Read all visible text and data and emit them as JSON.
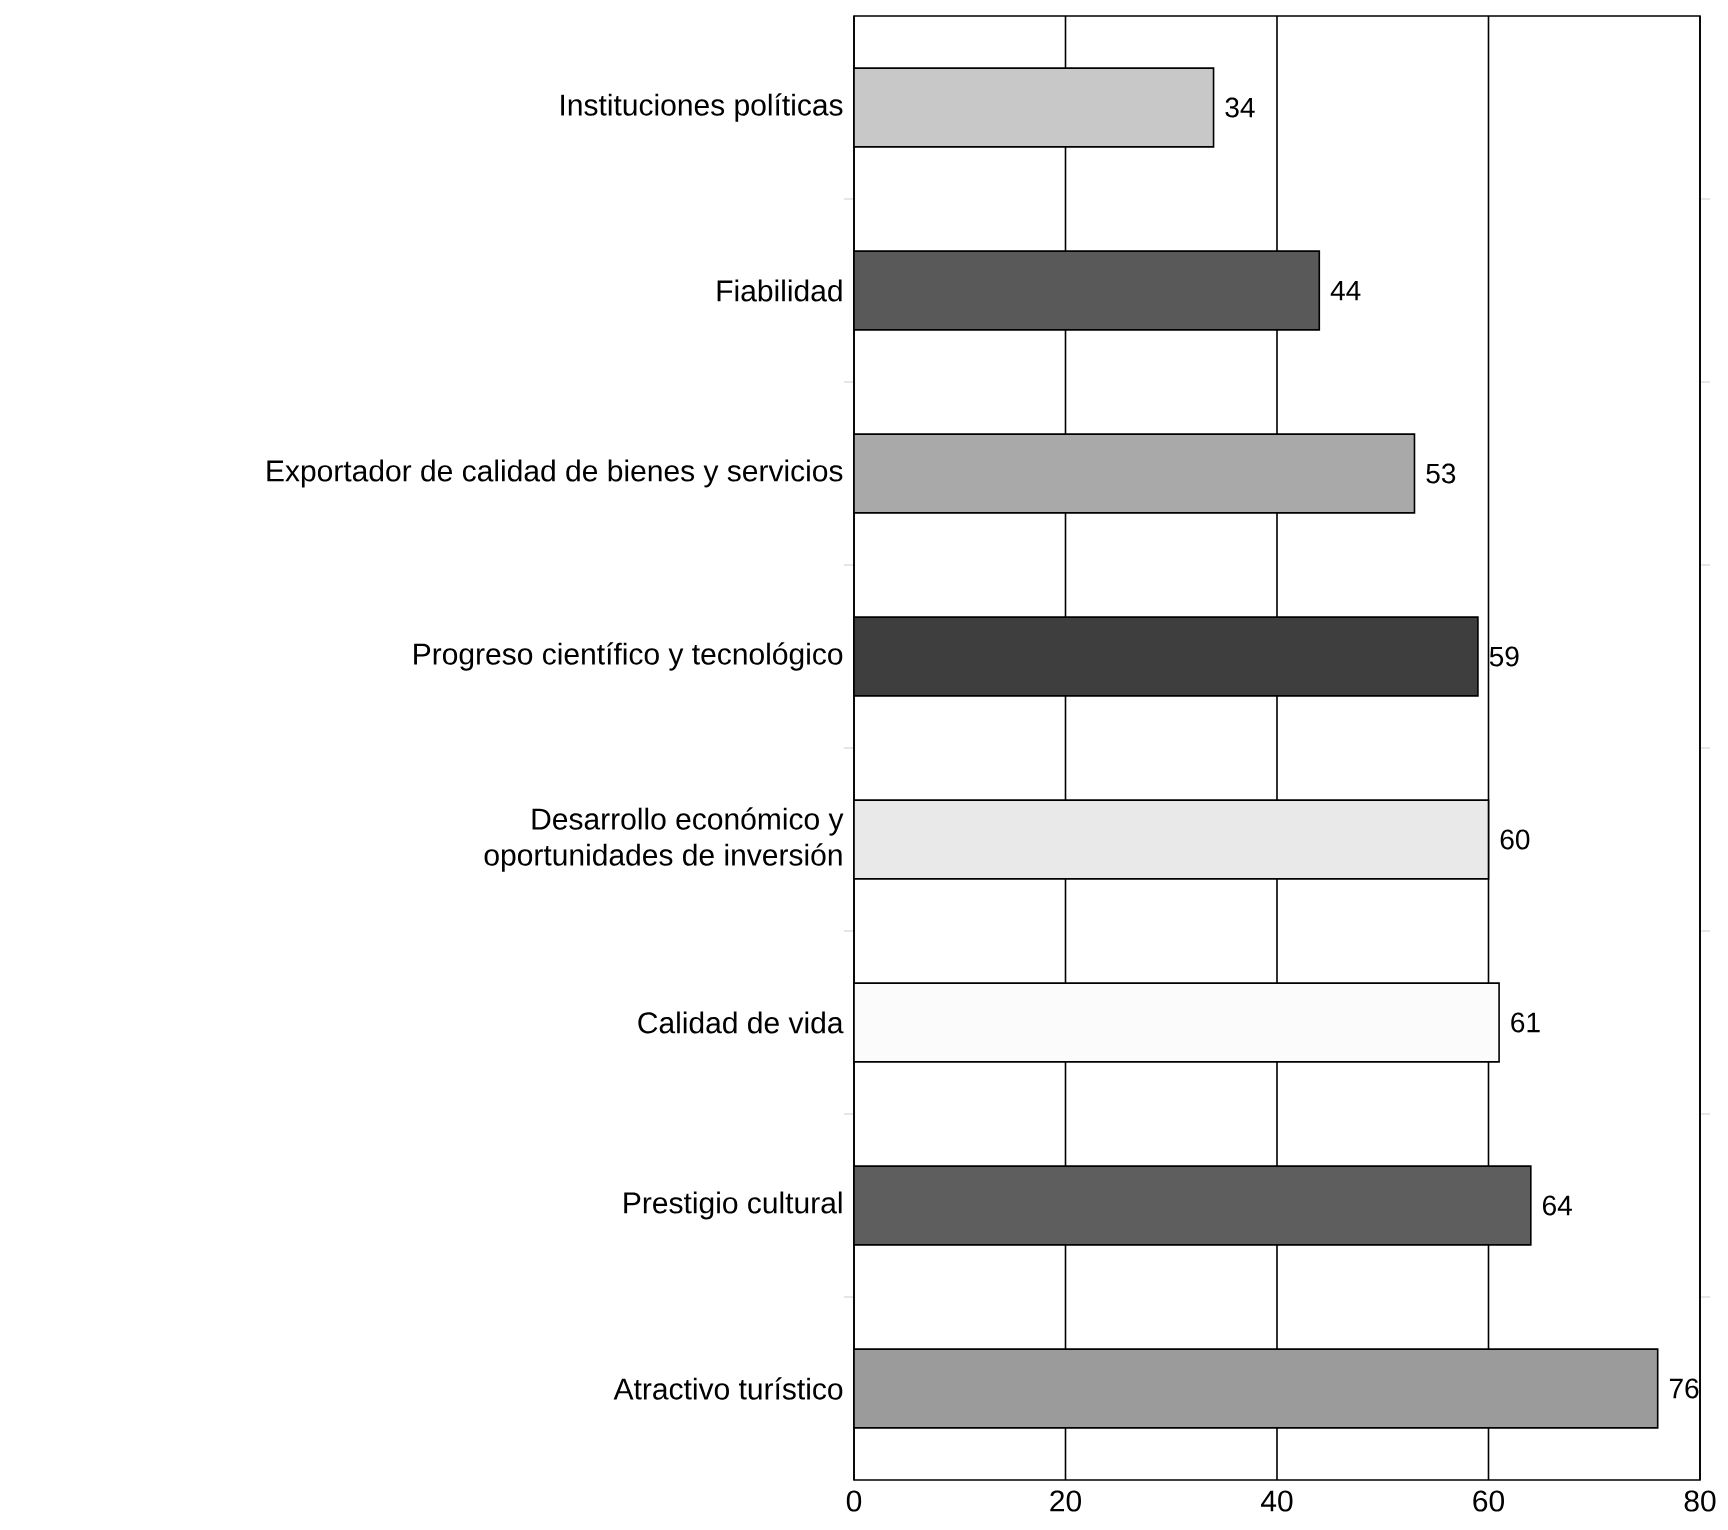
{
  "chart_data": {
    "type": "bar",
    "orientation": "horizontal",
    "categories": [
      "Instituciones políticas",
      "Fiabilidad",
      "Exportador de calidad de bienes y servicios",
      "Progreso científico y tecnológico",
      "Desarrollo económico y oportunidades de inversión",
      "Calidad de vida",
      "Prestigio cultural",
      "Atractivo turístico"
    ],
    "values": [
      34,
      44,
      53,
      59,
      60,
      61,
      64,
      76
    ],
    "colors": [
      "#c8c8c8",
      "#595959",
      "#a9a9a9",
      "#3e3e3e",
      "#e9e9e9",
      "#fbfbfb",
      "#5e5e5e",
      "#9b9b9b"
    ],
    "xlim": [
      0,
      80
    ],
    "xticks": [
      0,
      20,
      40,
      60,
      80
    ],
    "grid": "x",
    "data_labels": true
  }
}
